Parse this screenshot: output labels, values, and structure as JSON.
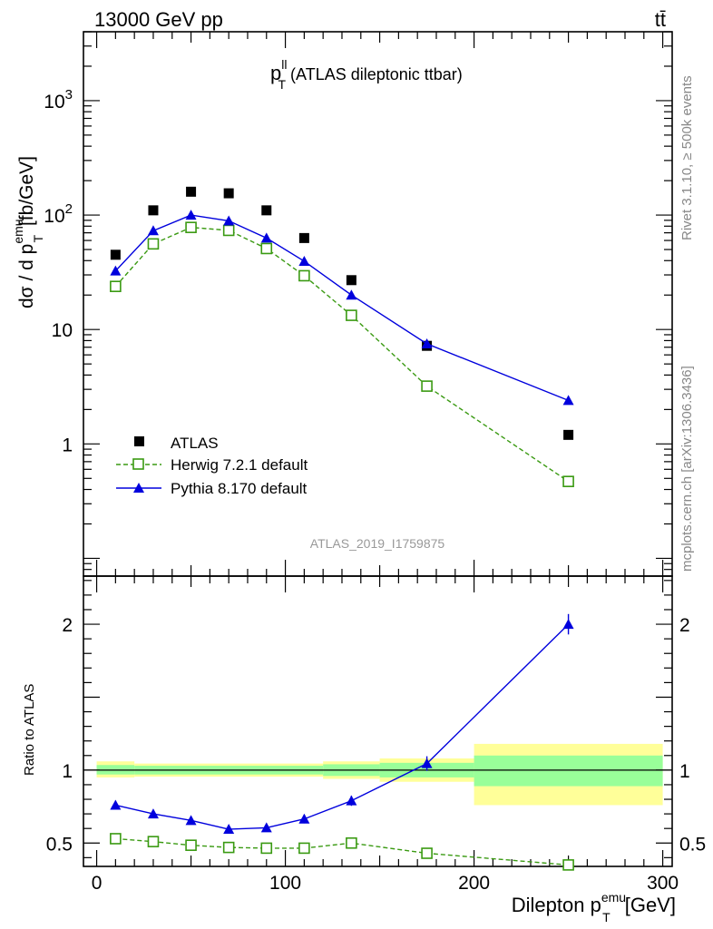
{
  "header": {
    "energy_label": "13000 GeV pp",
    "process_label": "tt̄"
  },
  "side_labels": {
    "rivet": "Rivet 3.1.10, ≥ 500k events",
    "mcplots": "mcplots.cern.ch [arXiv:1306.3436]"
  },
  "analysis_id": "ATLAS_2019_I1759875",
  "chart_data": [
    {
      "type": "scatter",
      "title_main": "p",
      "title_sup": "ll",
      "title_sub": "T",
      "title_rest": " (ATLAS dileptonic ttbar)",
      "ylabel": "dσ / d p_T^emu [fb/GeV]",
      "yscale": "log",
      "ylim": [
        0.07,
        4000
      ],
      "xlim": [
        -7,
        305
      ],
      "y_ticks": [
        "1",
        "10",
        "10^2",
        "10^3"
      ],
      "legend_position": "lower-left",
      "x": [
        10,
        30,
        50,
        70,
        90,
        110,
        135,
        175,
        250
      ],
      "series": [
        {
          "name": "ATLAS",
          "color": "#000000",
          "marker": "square",
          "values": [
            45,
            110,
            160,
            155,
            110,
            63,
            27,
            7.2,
            1.2
          ]
        },
        {
          "name": "Herwig 7.2.1 default",
          "color": "#3a9a12",
          "marker": "open-square",
          "line": "dashed",
          "values": [
            23.8,
            56,
            78,
            73.5,
            51,
            29.5,
            13.3,
            3.2,
            0.47
          ]
        },
        {
          "name": "Pythia 8.170 default",
          "color": "#0000dd",
          "marker": "triangle",
          "line": "solid",
          "values": [
            32.5,
            73,
            100,
            89,
            63,
            39.5,
            20,
            7.5,
            2.4
          ]
        }
      ]
    },
    {
      "type": "line",
      "ylabel": "Ratio to ATLAS",
      "xlabel": "Dilepton p_T^emu [GeV]",
      "xlim": [
        -7,
        305
      ],
      "ylim": [
        0.34,
        2.33
      ],
      "x_ticks": [
        "0",
        "100",
        "200",
        "300"
      ],
      "y_ticks": [
        "0.5",
        "1",
        "2"
      ],
      "reference_line": 1,
      "uncertainty_bands": [
        {
          "x_low": 0,
          "x_high": 20,
          "yellow": [
            0.95,
            1.06
          ],
          "green": [
            0.97,
            1.035
          ]
        },
        {
          "x_low": 20,
          "x_high": 120,
          "yellow": [
            0.955,
            1.045
          ],
          "green": [
            0.97,
            1.03
          ]
        },
        {
          "x_low": 120,
          "x_high": 150,
          "yellow": [
            0.94,
            1.06
          ],
          "green": [
            0.96,
            1.04
          ]
        },
        {
          "x_low": 150,
          "x_high": 200,
          "yellow": [
            0.92,
            1.08
          ],
          "green": [
            0.95,
            1.05
          ]
        },
        {
          "x_low": 200,
          "x_high": 300,
          "yellow": [
            0.76,
            1.18
          ],
          "green": [
            0.89,
            1.1
          ]
        }
      ],
      "series": [
        {
          "name": "Herwig 7.2.1 default",
          "color": "#3a9a12",
          "marker": "open-square",
          "line": "dashed",
          "values": [
            0.53,
            0.51,
            0.485,
            0.47,
            0.465,
            0.465,
            0.5,
            0.43,
            0.35
          ],
          "errors": [
            0.01,
            0.01,
            0.01,
            0.01,
            0.01,
            0.01,
            0.01,
            0.01,
            0.025
          ]
        },
        {
          "name": "Pythia 8.170 default",
          "color": "#0000dd",
          "marker": "triangle",
          "line": "solid",
          "values": [
            0.76,
            0.7,
            0.655,
            0.595,
            0.605,
            0.665,
            0.79,
            1.045,
            2.0
          ],
          "errors": [
            0.03,
            0.02,
            0.015,
            0.015,
            0.02,
            0.03,
            0.035,
            0.05,
            0.07
          ]
        }
      ]
    }
  ]
}
